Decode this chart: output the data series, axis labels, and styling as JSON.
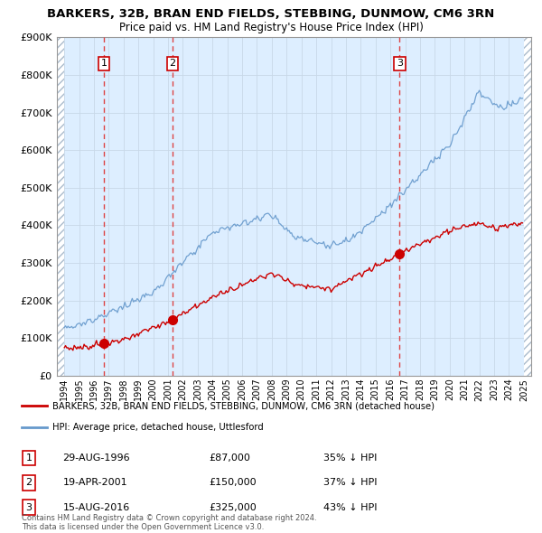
{
  "title": "BARKERS, 32B, BRAN END FIELDS, STEBBING, DUNMOW, CM6 3RN",
  "subtitle": "Price paid vs. HM Land Registry's House Price Index (HPI)",
  "legend_line1": "BARKERS, 32B, BRAN END FIELDS, STEBBING, DUNMOW, CM6 3RN (detached house)",
  "legend_line2": "HPI: Average price, detached house, Uttlesford",
  "transactions": [
    {
      "num": 1,
      "date": "29-AUG-1996",
      "price": 87000,
      "pct": "35% ↓ HPI",
      "year": 1996.66
    },
    {
      "num": 2,
      "date": "19-APR-2001",
      "price": 150000,
      "pct": "37% ↓ HPI",
      "year": 2001.3
    },
    {
      "num": 3,
      "date": "15-AUG-2016",
      "price": 325000,
      "pct": "43% ↓ HPI",
      "year": 2016.62
    }
  ],
  "copyright": "Contains HM Land Registry data © Crown copyright and database right 2024.\nThis data is licensed under the Open Government Licence v3.0.",
  "ylim": [
    0,
    900000
  ],
  "yticks": [
    0,
    100000,
    200000,
    300000,
    400000,
    500000,
    600000,
    700000,
    800000,
    900000
  ],
  "xlim_start": 1993.5,
  "xlim_end": 2025.5,
  "price_color": "#cc0000",
  "hpi_color": "#6699cc",
  "bg_color": "#ddeeff",
  "grid_color": "#c8d8e8",
  "dashed_color": "#dd4444",
  "box_edge_color": "#cc0000"
}
